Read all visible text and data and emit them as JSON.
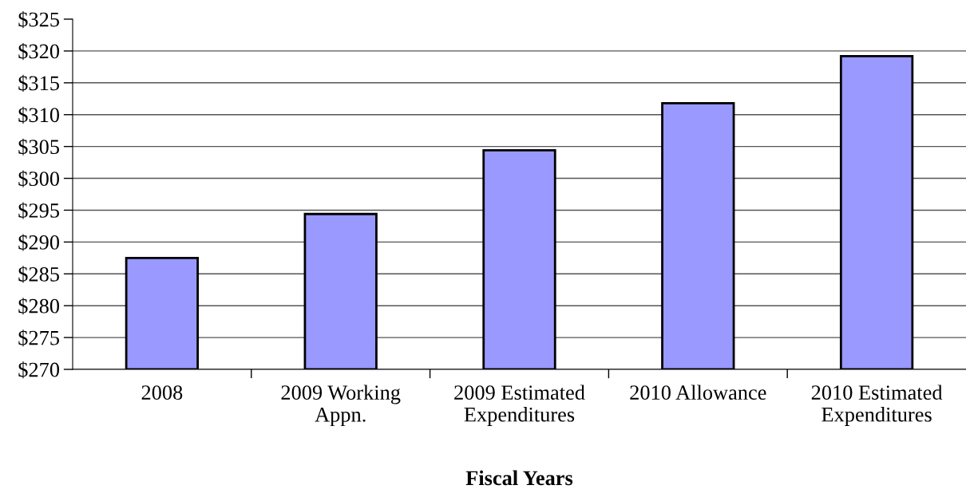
{
  "chart_data": {
    "type": "bar",
    "xlabel": "Fiscal Years",
    "categories": [
      "2008",
      "2009 Working\nAppn.",
      "2009 Estimated\nExpenditures",
      "2010 Allowance",
      "2010 Estimated\nExpenditures"
    ],
    "values": [
      287.5,
      294.4,
      304.4,
      311.8,
      319.2
    ],
    "color": "#9999ff",
    "ylim": [
      270,
      325
    ],
    "yticks": [
      {
        "value": 270,
        "label": "$270"
      },
      {
        "value": 275,
        "label": "$275"
      },
      {
        "value": 280,
        "label": "$280"
      },
      {
        "value": 285,
        "label": "$285"
      },
      {
        "value": 290,
        "label": "$290"
      },
      {
        "value": 295,
        "label": "$295"
      },
      {
        "value": 300,
        "label": "$300"
      },
      {
        "value": 305,
        "label": "$305"
      },
      {
        "value": 310,
        "label": "$310"
      },
      {
        "value": 315,
        "label": "$315"
      },
      {
        "value": 320,
        "label": "$320"
      },
      {
        "value": 325,
        "label": "$325"
      }
    ],
    "grid": "y"
  }
}
